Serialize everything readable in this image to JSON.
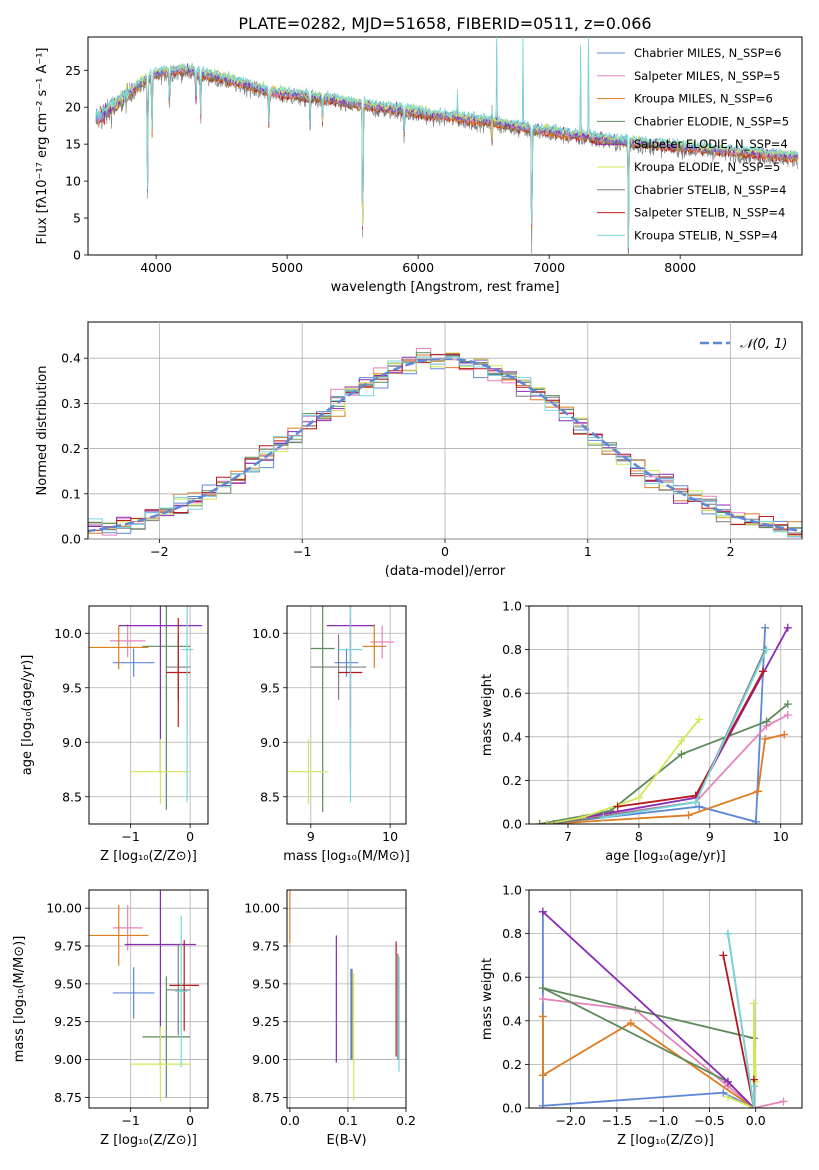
{
  "title": "PLATE=0282, MJD=51658, FIBERID=0511, z=0.066",
  "colors": {
    "chabrier_miles": "#5f87d8",
    "salpeter_miles": "#e583bd",
    "kroupa_miles": "#dd7d22",
    "chabrier_elodie": "#5d8a5b",
    "salpeter_elodie": "#8a2bb4",
    "kroupa_elodie": "#d4e55a",
    "chabrier_stelib": "#7f7f7f",
    "salpeter_stelib": "#b8171b",
    "kroupa_stelib": "#78d6dc",
    "normal": "#5f87d8",
    "grid": "#b0b0b0"
  },
  "chart_data": [
    {
      "id": "spectrum",
      "type": "line",
      "xlabel": "wavelength [Angstrom, rest frame]",
      "ylabel": "Flux [fλ10⁻¹⁷ erg cm⁻² s⁻¹ A⁻¹]",
      "xlim": [
        3480,
        8930
      ],
      "ylim": [
        0,
        29.5
      ],
      "xticks": [
        "4000",
        "5000",
        "6000",
        "7000",
        "8000"
      ],
      "yticks": [
        "0",
        "5",
        "10",
        "15",
        "20",
        "25"
      ],
      "grid": false,
      "legend_position": "top-right",
      "legend": [
        "Chabrier MILES, N_SSP=6",
        "Salpeter MILES, N_SSP=5",
        "Kroupa MILES, N_SSP=6",
        "Chabrier ELODIE, N_SSP=5",
        "Salpeter ELODIE, N_SSP=4",
        "Kroupa ELODIE, N_SSP=5",
        "Chabrier STELIB, N_SSP=4",
        "Salpeter STELIB, N_SSP=4",
        "Kroupa STELIB, N_SSP=4"
      ],
      "continuum_x": [
        3550,
        3700,
        3800,
        3900,
        4000,
        4100,
        4200,
        4300,
        4500,
        4700,
        4900,
        5100,
        5300,
        5500,
        5700,
        5900,
        6100,
        6300,
        6500,
        6700,
        6900,
        7100,
        7300,
        7500,
        7800,
        8100,
        8400,
        8700,
        8900
      ],
      "continuum_y": [
        18.5,
        20.5,
        22,
        23.5,
        24.5,
        25,
        25,
        24.8,
        24,
        23,
        22,
        21.6,
        21.2,
        20.5,
        20,
        19.6,
        19,
        18.6,
        18.2,
        17.6,
        17,
        16.5,
        16,
        15.5,
        15,
        14.5,
        14,
        13.6,
        13.3
      ],
      "absorption_lines": [
        {
          "x": 3934,
          "depth": 16.0
        },
        {
          "x": 3969,
          "depth": 8.0
        },
        {
          "x": 4102,
          "depth": 5.0
        },
        {
          "x": 4304,
          "depth": 4.0
        },
        {
          "x": 4340,
          "depth": 6.0
        },
        {
          "x": 4861,
          "depth": 5.0
        },
        {
          "x": 5175,
          "depth": 4.0
        },
        {
          "x": 5270,
          "depth": 3.0
        },
        {
          "x": 5577,
          "depth": 21.0
        },
        {
          "x": 5893,
          "depth": 4.0
        },
        {
          "x": 6563,
          "depth": 3.5
        },
        {
          "x": 6867,
          "depth": 17.0
        },
        {
          "x": 7605,
          "depth": 15.0
        }
      ],
      "emission_lines": [
        {
          "x": 5577,
          "height": 4
        },
        {
          "x": 6300,
          "height": 3
        },
        {
          "x": 6563,
          "height": 6
        },
        {
          "x": 6600,
          "height": 12
        },
        {
          "x": 6800,
          "height": 12
        },
        {
          "x": 7240,
          "height": 12
        },
        {
          "x": 7300,
          "height": 14
        },
        {
          "x": 7600,
          "height": 3
        }
      ]
    },
    {
      "id": "residuals",
      "type": "line",
      "xlabel": "(data-model)/error",
      "ylabel": "Normed distribution",
      "xlim": [
        -2.5,
        2.5
      ],
      "ylim": [
        0,
        0.48
      ],
      "xticks": [
        "−2",
        "−1",
        "0",
        "1",
        "2"
      ],
      "yticks": [
        "0.0",
        "0.1",
        "0.2",
        "0.3",
        "0.4"
      ],
      "grid": true,
      "legend_position": "top-right",
      "legend": [
        "𝒩(0, 1)"
      ],
      "bin_width": 0.1
    },
    {
      "id": "age_vs_z",
      "type": "scatter",
      "xlabel": "Z [log₁₀(Z/Z⊙)]",
      "ylabel": "age  [log₁₀(age/yr)]",
      "xlim": [
        -1.7,
        0.3
      ],
      "ylim": [
        8.25,
        10.25
      ],
      "xticks": [
        "−1",
        "0"
      ],
      "yticks": [
        "8.5",
        "9.0",
        "9.5",
        "10.0"
      ],
      "grid": true,
      "points": [
        {
          "series": "chabrier_miles",
          "x": -0.95,
          "xe": 0.35,
          "y": 9.73,
          "ye": 0.13
        },
        {
          "series": "salpeter_miles",
          "x": -1.05,
          "xe": 0.3,
          "y": 9.93,
          "ye": 0.15
        },
        {
          "series": "kroupa_miles",
          "x": -1.2,
          "xe": 0.5,
          "y": 9.87,
          "ye": 0.2
        },
        {
          "series": "chabrier_elodie",
          "x": -0.4,
          "xe": 0.4,
          "y": 9.88,
          "ye": 1.5
        },
        {
          "series": "salpeter_elodie",
          "x": -0.5,
          "xe": 0.7,
          "y": 10.07,
          "ye": 1.35
        },
        {
          "series": "kroupa_elodie",
          "x": -0.5,
          "xe": 0.5,
          "y": 8.73,
          "ye": 0.3
        },
        {
          "series": "chabrier_stelib",
          "x": -0.2,
          "xe": 0.2,
          "y": 9.69,
          "ye": 0.3
        },
        {
          "series": "salpeter_stelib",
          "x": -0.2,
          "xe": 0.2,
          "y": 9.64,
          "ye": 0.5
        },
        {
          "series": "kroupa_stelib",
          "x": -0.05,
          "xe": 0.1,
          "y": 9.85,
          "ye": 1.4
        }
      ]
    },
    {
      "id": "age_vs_mass",
      "type": "scatter",
      "xlabel": "mass [log₁₀(M/M⊙)]",
      "ylabel": "",
      "xlim": [
        8.7,
        10.2
      ],
      "ylim": [
        8.25,
        10.25
      ],
      "xticks": [
        "9",
        "10"
      ],
      "yticks": [
        "8.5",
        "9.0",
        "9.5",
        "10.0"
      ],
      "grid": true,
      "points": [
        {
          "series": "chabrier_miles",
          "x": 9.45,
          "xe": 0.15,
          "y": 9.73,
          "ye": 0.13
        },
        {
          "series": "salpeter_miles",
          "x": 9.9,
          "xe": 0.15,
          "y": 9.92,
          "ye": 0.15
        },
        {
          "series": "kroupa_miles",
          "x": 9.8,
          "xe": 0.15,
          "y": 9.88,
          "ye": 0.2
        },
        {
          "series": "chabrier_elodie",
          "x": 9.15,
          "xe": 0.15,
          "y": 9.86,
          "ye": 1.5
        },
        {
          "series": "salpeter_elodie",
          "x": 9.5,
          "xe": 0.3,
          "y": 10.07,
          "ye": 1.35
        },
        {
          "series": "kroupa_elodie",
          "x": 8.97,
          "xe": 0.25,
          "y": 8.73,
          "ye": 0.3
        },
        {
          "series": "chabrier_stelib",
          "x": 9.35,
          "xe": 0.35,
          "y": 9.69,
          "ye": 0.3
        },
        {
          "series": "salpeter_stelib",
          "x": 9.5,
          "xe": 0.15,
          "y": 9.64,
          "ye": 0.5
        },
        {
          "series": "kroupa_stelib",
          "x": 9.5,
          "xe": 0.15,
          "y": 9.85,
          "ye": 1.4
        }
      ]
    },
    {
      "id": "weight_vs_age",
      "type": "line",
      "xlabel": "age  [log₁₀(age/yr)]",
      "ylabel": "mass weight",
      "xlim": [
        6.45,
        10.3
      ],
      "ylim": [
        0,
        1.0
      ],
      "xticks": [
        "7",
        "8",
        "9",
        "10"
      ],
      "yticks": [
        "0.0",
        "0.2",
        "0.4",
        "0.6",
        "0.8",
        "1.0"
      ],
      "grid": true,
      "series": [
        {
          "series": "chabrier_miles",
          "x": [
            6.7,
            8.85,
            9.65,
            9.78
          ],
          "y": [
            0.0,
            0.08,
            0.01,
            0.9
          ]
        },
        {
          "series": "salpeter_miles",
          "x": [
            6.6,
            8.8,
            9.8,
            10.1
          ],
          "y": [
            0.0,
            0.1,
            0.45,
            0.5
          ]
        },
        {
          "series": "kroupa_miles",
          "x": [
            6.7,
            8.7,
            9.68,
            9.78,
            10.05
          ],
          "y": [
            0.0,
            0.04,
            0.15,
            0.39,
            0.41
          ]
        },
        {
          "series": "chabrier_elodie",
          "x": [
            6.6,
            7.6,
            8.6,
            9.8,
            10.1
          ],
          "y": [
            0.0,
            0.06,
            0.32,
            0.47,
            0.55
          ]
        },
        {
          "series": "salpeter_elodie",
          "x": [
            6.7,
            8.8,
            10.1
          ],
          "y": [
            0.0,
            0.12,
            0.9
          ]
        },
        {
          "series": "kroupa_elodie",
          "x": [
            6.7,
            7.2,
            8.0,
            8.6,
            8.85
          ],
          "y": [
            0.0,
            0.03,
            0.12,
            0.38,
            0.48
          ]
        },
        {
          "series": "chabrier_stelib",
          "x": [
            6.8,
            8.8,
            9.78
          ],
          "y": [
            0.0,
            0.1,
            0.8
          ]
        },
        {
          "series": "salpeter_stelib",
          "x": [
            7.7,
            8.8,
            9.75
          ],
          "y": [
            0.08,
            0.13,
            0.7
          ]
        },
        {
          "series": "kroupa_stelib",
          "x": [
            7.5,
            8.8,
            9.8
          ],
          "y": [
            0.03,
            0.1,
            0.8
          ]
        }
      ]
    },
    {
      "id": "mass_vs_z",
      "type": "scatter",
      "xlabel": "Z [log₁₀(Z/Z⊙)]",
      "ylabel": "mass [log₁₀(M/M⊙)]",
      "xlim": [
        -1.7,
        0.3
      ],
      "ylim": [
        8.68,
        10.12
      ],
      "xticks": [
        "−1",
        "0"
      ],
      "yticks": [
        "8.75",
        "9.00",
        "9.25",
        "9.50",
        "9.75",
        "10.00"
      ],
      "grid": true,
      "points": [
        {
          "series": "chabrier_miles",
          "x": -0.95,
          "xe": 0.35,
          "y": 9.44,
          "ye": 0.17
        },
        {
          "series": "salpeter_miles",
          "x": -1.05,
          "xe": 0.25,
          "y": 9.87,
          "ye": 0.15
        },
        {
          "series": "kroupa_miles",
          "x": -1.2,
          "xe": 0.5,
          "y": 9.82,
          "ye": 0.2
        },
        {
          "series": "chabrier_elodie",
          "x": -0.4,
          "xe": 0.4,
          "y": 9.15,
          "ye": 0.4
        },
        {
          "series": "salpeter_elodie",
          "x": -0.5,
          "xe": 0.6,
          "y": 9.76,
          "ye": 0.8
        },
        {
          "series": "kroupa_elodie",
          "x": -0.5,
          "xe": 0.5,
          "y": 8.97,
          "ye": 0.25
        },
        {
          "series": "chabrier_stelib",
          "x": -0.2,
          "xe": 0.2,
          "y": 9.46,
          "ye": 0.3
        },
        {
          "series": "salpeter_stelib",
          "x": -0.1,
          "xe": 0.25,
          "y": 9.49,
          "ye": 0.3
        },
        {
          "series": "kroupa_stelib",
          "x": -0.15,
          "xe": 0.1,
          "y": 9.45,
          "ye": 0.5
        }
      ]
    },
    {
      "id": "mass_vs_ebv",
      "type": "scatter",
      "xlabel": "E(B-V)",
      "ylabel": "",
      "xlim": [
        -0.005,
        0.2
      ],
      "ylim": [
        8.68,
        10.12
      ],
      "xticks": [
        "0.0",
        "0.1",
        "0.2"
      ],
      "yticks": [
        "8.75",
        "9.00",
        "9.25",
        "9.50",
        "9.75",
        "10.00"
      ],
      "grid": true,
      "points": [
        {
          "series": "chabrier_miles",
          "x": 0.105,
          "xe": 0.0,
          "y": 9.3,
          "ye": 0.3
        },
        {
          "series": "kroupa_miles",
          "x": 0.0,
          "xe": 0.0,
          "y": 9.95,
          "ye": 0.18
        },
        {
          "series": "salpeter_elodie",
          "x": 0.08,
          "xe": 0.0,
          "y": 9.4,
          "ye": 0.42
        },
        {
          "series": "kroupa_elodie",
          "x": 0.11,
          "xe": 0.0,
          "y": 9.15,
          "ye": 0.42
        },
        {
          "series": "chabrier_elodie",
          "x": 0.107,
          "xe": 0.0,
          "y": 9.3,
          "ye": 0.3
        },
        {
          "series": "salpeter_stelib",
          "x": 0.183,
          "xe": 0.0,
          "y": 9.4,
          "ye": 0.38
        },
        {
          "series": "chabrier_stelib",
          "x": 0.186,
          "xe": 0.0,
          "y": 9.35,
          "ye": 0.35
        },
        {
          "series": "kroupa_stelib",
          "x": 0.188,
          "xe": 0.0,
          "y": 9.3,
          "ye": 0.38
        }
      ]
    },
    {
      "id": "weight_vs_z",
      "type": "line",
      "xlabel": "Z [log₁₀(Z/Z⊙)]",
      "ylabel": "mass weight",
      "xlim": [
        -2.45,
        0.5
      ],
      "ylim": [
        0,
        1.0
      ],
      "xticks": [
        "−2.0",
        "−1.5",
        "−1.0",
        "−0.5",
        "0.0"
      ],
      "yticks": [
        "0.0",
        "0.2",
        "0.4",
        "0.6",
        "0.8",
        "1.0"
      ],
      "grid": true,
      "series": [
        {
          "series": "chabrier_miles",
          "x": [
            -0.02,
            -0.35,
            -2.3,
            -2.3
          ],
          "y": [
            0.0,
            0.07,
            0.01,
            0.9
          ]
        },
        {
          "series": "salpeter_miles",
          "x": [
            0.3,
            -0.02,
            -0.3,
            -1.3,
            -2.3
          ],
          "y": [
            0.03,
            0.0,
            0.1,
            0.45,
            0.5
          ]
        },
        {
          "series": "kroupa_miles",
          "x": [
            -0.02,
            -1.35,
            -2.3,
            -2.3
          ],
          "y": [
            0.0,
            0.39,
            0.15,
            0.42
          ]
        },
        {
          "series": "chabrier_elodie",
          "x": [
            -0.02,
            -0.3,
            -2.3,
            -0.02,
            -0.02
          ],
          "y": [
            0.0,
            0.12,
            0.55,
            0.32,
            0.0
          ]
        },
        {
          "series": "salpeter_elodie",
          "x": [
            -2.3,
            -0.3,
            -0.02
          ],
          "y": [
            0.9,
            0.12,
            0.0
          ]
        },
        {
          "series": "kroupa_elodie",
          "x": [
            -0.3,
            -0.02,
            -0.02,
            0.0
          ],
          "y": [
            0.05,
            0.0,
            0.48,
            0.12
          ]
        },
        {
          "series": "chabrier_stelib",
          "x": [
            -0.3,
            -0.02,
            -0.02
          ],
          "y": [
            0.8,
            0.0,
            0.1
          ]
        },
        {
          "series": "salpeter_stelib",
          "x": [
            -0.35,
            -0.02,
            -0.02
          ],
          "y": [
            0.7,
            0.0,
            0.13
          ]
        },
        {
          "series": "kroupa_stelib",
          "x": [
            -0.3,
            -0.02,
            -0.02
          ],
          "y": [
            0.8,
            0.0,
            0.1
          ]
        }
      ]
    }
  ]
}
